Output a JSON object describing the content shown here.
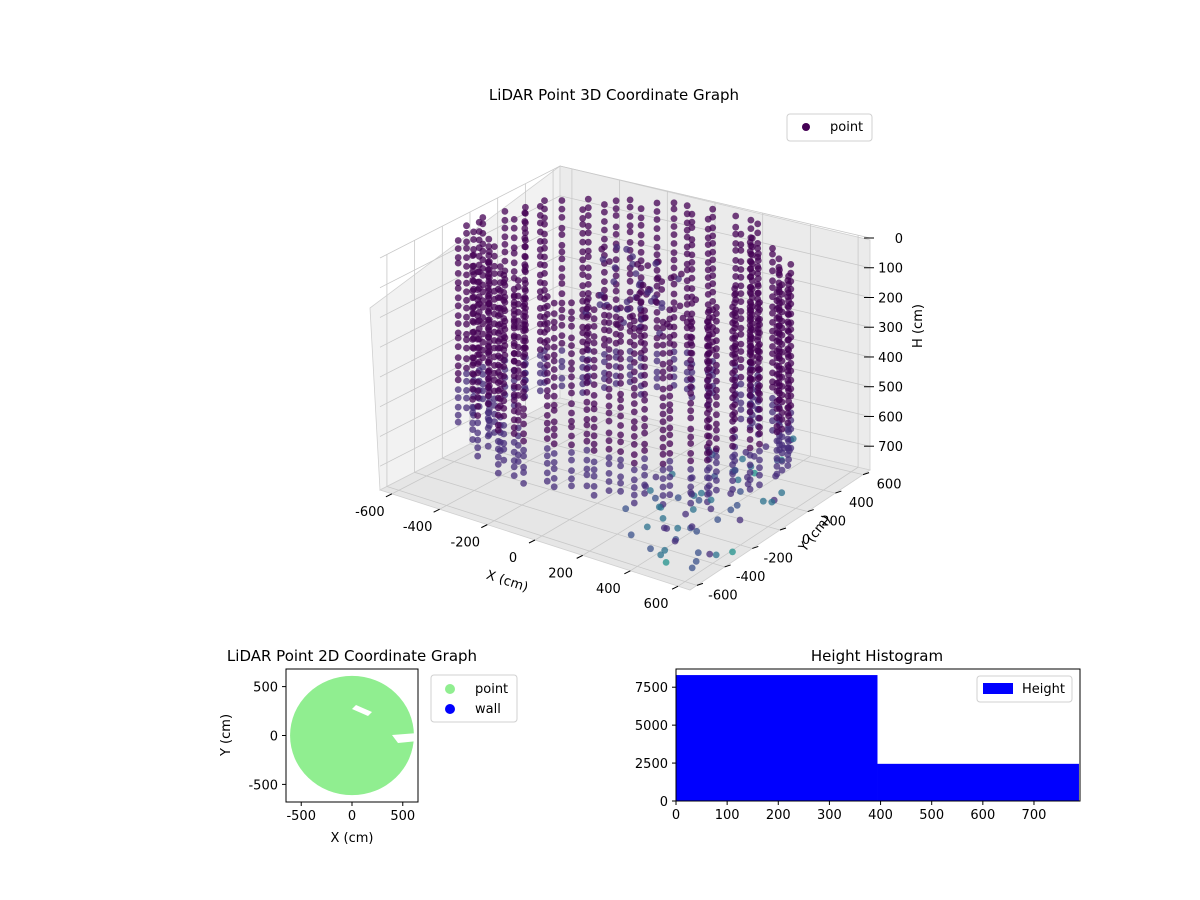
{
  "chart_data": [
    {
      "type": "scatter3d",
      "title": "LiDAR Point 3D Coordinate Graph",
      "xlabel": "X (cm)",
      "ylabel": "Y (cm)",
      "zlabel": "H (cm)",
      "xticks": [
        -600,
        -400,
        -200,
        0,
        200,
        400,
        600
      ],
      "yticks": [
        -600,
        -400,
        -200,
        0,
        200,
        400,
        600
      ],
      "zticks": [
        0,
        100,
        200,
        300,
        400,
        500,
        600,
        700
      ],
      "xlim": [
        -650,
        650
      ],
      "ylim": [
        -650,
        650
      ],
      "zlim": [
        0,
        780
      ],
      "z_inverted": true,
      "grid": true,
      "legend": {
        "position": "top-right",
        "entries": [
          {
            "label": "point",
            "color": "#440154"
          }
        ]
      },
      "colormap": "viridis",
      "point_cloud": {
        "shape": "ring of vertical scan columns around the origin",
        "radius_range_cm": [
          460,
          620
        ],
        "height_range_cm": [
          0,
          780
        ],
        "outer_scatter": "sparse points toward +X / -Y with larger height"
      }
    },
    {
      "type": "scatter",
      "title": "LiDAR Point 2D Coordinate Graph",
      "xlabel": "X (cm)",
      "ylabel": "Y (cm)",
      "xticks": [
        -500,
        0,
        500
      ],
      "yticks": [
        -500,
        0,
        500
      ],
      "xlim": [
        -650,
        650
      ],
      "ylim": [
        -680,
        680
      ],
      "legend": {
        "position": "outside-right",
        "entries": [
          {
            "label": "point",
            "color": "#90ee90"
          },
          {
            "label": "wall",
            "color": "#0000ff"
          }
        ]
      },
      "point_region": {
        "shape": "filled disc",
        "radius_cm": 610,
        "center": [
          0,
          0
        ]
      }
    },
    {
      "type": "histogram",
      "title": "Height Histogram",
      "xticks": [
        0,
        100,
        200,
        300,
        400,
        500,
        600,
        700
      ],
      "yticks": [
        0,
        2500,
        5000,
        7500
      ],
      "xlim": [
        0,
        790
      ],
      "ylim": [
        0,
        8700
      ],
      "bins": [
        {
          "x0": 0,
          "x1": 394,
          "count": 8300
        },
        {
          "x0": 394,
          "x1": 788,
          "count": 2450
        }
      ],
      "color": "#0000ff",
      "legend": {
        "position": "top-right",
        "entries": [
          {
            "label": "Height",
            "color": "#0000ff"
          }
        ]
      }
    }
  ]
}
